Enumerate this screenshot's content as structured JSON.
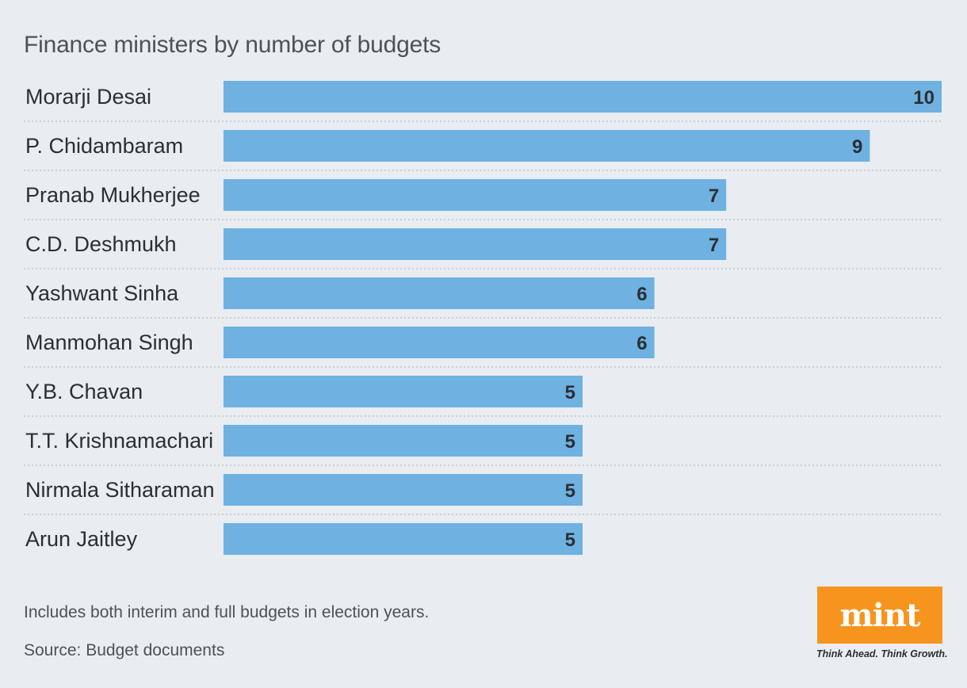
{
  "chart_data": {
    "type": "bar",
    "orientation": "horizontal",
    "title": "Finance ministers by number of budgets",
    "categories": [
      "Morarji Desai",
      "P. Chidambaram",
      "Pranab Mukherjee",
      "C.D. Deshmukh",
      "Yashwant Sinha",
      "Manmohan Singh",
      "Y.B. Chavan",
      "T.T. Krishnamachari",
      "Nirmala Sitharaman",
      "Arun Jaitley"
    ],
    "values": [
      10,
      9,
      7,
      7,
      6,
      6,
      5,
      5,
      5,
      5
    ],
    "xlim": [
      0,
      10
    ],
    "bar_color": "#6fb1e1",
    "grid": false,
    "data_labels": true
  },
  "footer": {
    "note": "Includes both interim and full budgets in election years.",
    "source": "Source: Budget documents"
  },
  "brand": {
    "logo": "mint",
    "tagline": "Think Ahead. Think Growth.",
    "color": "#f7941d"
  }
}
